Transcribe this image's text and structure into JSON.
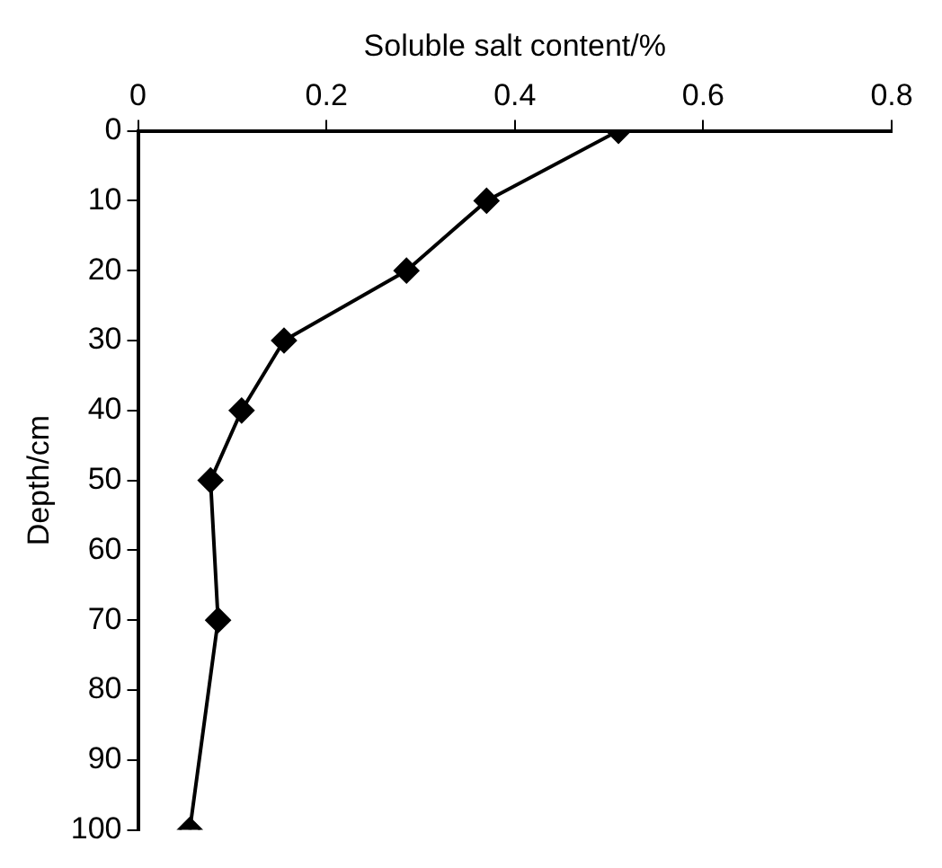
{
  "chart_data": {
    "type": "line",
    "xlabel": "Soluble salt content/%",
    "ylabel": "Depth/cm",
    "series": [
      {
        "x": [
          0.51,
          0.37,
          0.285,
          0.155,
          0.11,
          0.077,
          0.085,
          0.055
        ],
        "values": [
          0,
          10,
          20,
          30,
          40,
          50,
          70,
          100
        ],
        "color": "#000000"
      }
    ],
    "xlim": [
      0,
      0.8
    ],
    "xticks": [
      0,
      0.2,
      0.4,
      0.6,
      0.8
    ],
    "ylim": [
      100,
      0
    ],
    "yticks": [
      0,
      10,
      20,
      30,
      40,
      50,
      60,
      70,
      80,
      90,
      100
    ],
    "grid": false,
    "legend": false,
    "marker": "diamond",
    "line_style": "solid"
  }
}
